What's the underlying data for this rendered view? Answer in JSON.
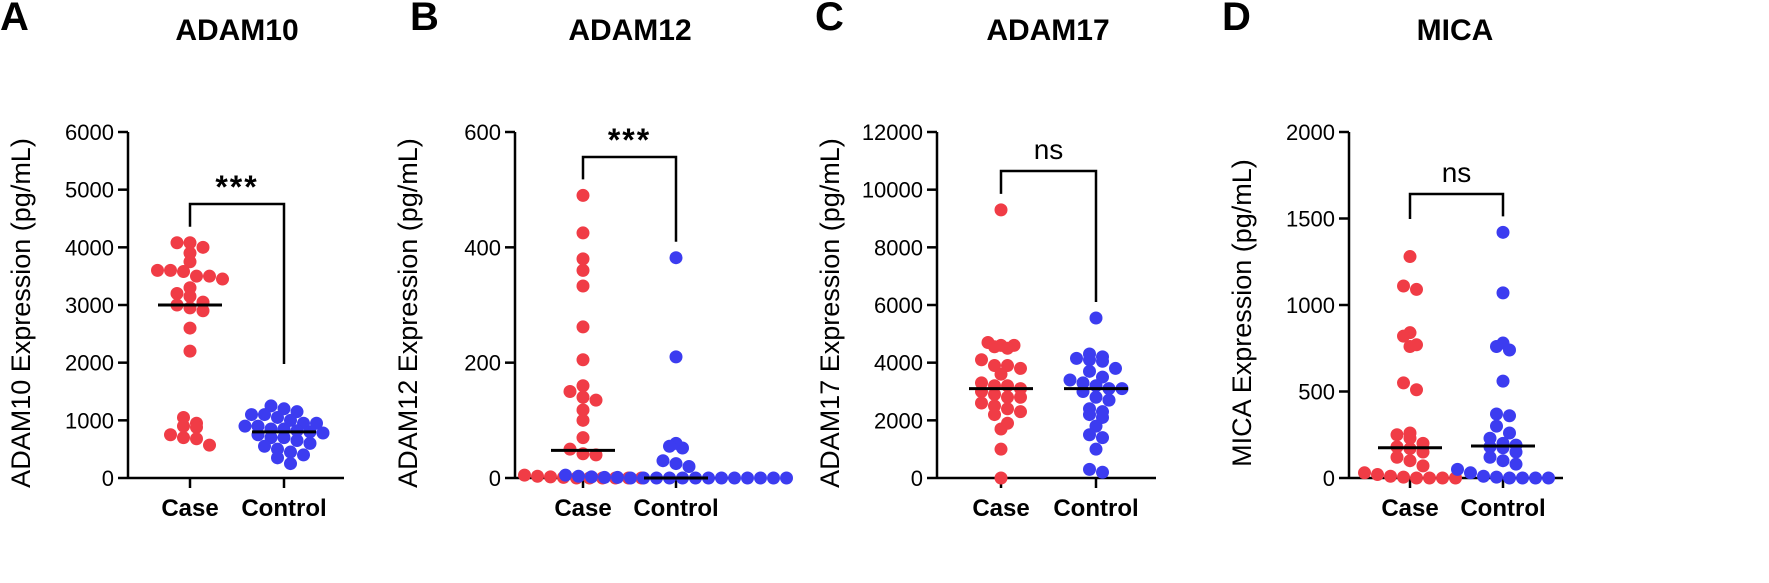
{
  "chart_data": [
    {
      "type": "scatter",
      "panel": "A",
      "title": "ADAM10",
      "ylabel": "ADAM10 Expression (pg/mL)",
      "ylim": [
        0,
        6000
      ],
      "yticks": [
        0,
        1000,
        2000,
        3000,
        4000,
        5000,
        6000
      ],
      "categories": [
        "Case",
        "Control"
      ],
      "significance": "***",
      "colors": [
        "#f03c46",
        "#3c3cf0"
      ],
      "series": [
        {
          "name": "Case",
          "median": 3000,
          "values": [
            4080,
            4080,
            4000,
            3900,
            3750,
            3600,
            3600,
            3580,
            3500,
            3500,
            3450,
            3300,
            3200,
            3150,
            3050,
            3000,
            2950,
            2900,
            2600,
            2200,
            1050,
            950,
            900,
            880,
            750,
            700,
            680,
            570
          ]
        },
        {
          "name": "Control",
          "median": 800,
          "values": [
            1250,
            1200,
            1150,
            1100,
            1100,
            1050,
            1000,
            950,
            950,
            900,
            900,
            850,
            850,
            820,
            800,
            780,
            750,
            700,
            700,
            650,
            600,
            550,
            500,
            450,
            400,
            350,
            250
          ]
        }
      ]
    },
    {
      "type": "scatter",
      "panel": "B",
      "title": "ADAM12",
      "ylabel": "ADAM12 Expression (pg/mL)",
      "ylim": [
        0,
        600
      ],
      "yticks": [
        0,
        200,
        400,
        600
      ],
      "categories": [
        "Case",
        "Control"
      ],
      "significance": "***",
      "colors": [
        "#f03c46",
        "#3c3cf0"
      ],
      "series": [
        {
          "name": "Case",
          "median": 48,
          "values": [
            490,
            425,
            380,
            360,
            333,
            262,
            205,
            160,
            150,
            140,
            135,
            118,
            100,
            70,
            50,
            42,
            40,
            5,
            3,
            2,
            1,
            0,
            0,
            0,
            0,
            0,
            0
          ]
        },
        {
          "name": "Control",
          "median": 0,
          "values": [
            382,
            210,
            60,
            55,
            52,
            30,
            25,
            20,
            5,
            3,
            2,
            1,
            1,
            0,
            0,
            0,
            0,
            0,
            0,
            0,
            0,
            0,
            0,
            0,
            0,
            0
          ]
        }
      ]
    },
    {
      "type": "scatter",
      "panel": "C",
      "title": "ADAM17",
      "ylabel": "ADAM17 Expression (pg/mL)",
      "ylim": [
        0,
        12000
      ],
      "yticks": [
        0,
        2000,
        4000,
        6000,
        8000,
        10000,
        12000
      ],
      "categories": [
        "Case",
        "Control"
      ],
      "significance": "ns",
      "colors": [
        "#f03c46",
        "#3c3cf0"
      ],
      "series": [
        {
          "name": "Case",
          "median": 3100,
          "values": [
            9300,
            4700,
            4600,
            4600,
            4550,
            4500,
            4100,
            3900,
            3900,
            3800,
            3600,
            3300,
            3200,
            3200,
            3100,
            3000,
            2900,
            2800,
            2800,
            2600,
            2500,
            2400,
            2300,
            2200,
            1900,
            1700,
            1000,
            0
          ]
        },
        {
          "name": "Control",
          "median": 3100,
          "values": [
            5550,
            4300,
            4200,
            4150,
            4100,
            4050,
            3800,
            3700,
            3500,
            3400,
            3300,
            3200,
            3100,
            3100,
            3000,
            2800,
            2700,
            2400,
            2300,
            2200,
            2100,
            1800,
            1500,
            1400,
            1000,
            300,
            200
          ]
        }
      ]
    },
    {
      "type": "scatter",
      "panel": "D",
      "title": "MICA",
      "ylabel": "MICA Expression (pg/mL)",
      "ylim": [
        0,
        2000
      ],
      "yticks": [
        0,
        500,
        1000,
        1500,
        2000
      ],
      "categories": [
        "Case",
        "Control"
      ],
      "significance": "ns",
      "colors": [
        "#f03c46",
        "#3c3cf0"
      ],
      "series": [
        {
          "name": "Case",
          "median": 175,
          "values": [
            1280,
            1110,
            1090,
            840,
            820,
            770,
            760,
            550,
            510,
            260,
            250,
            230,
            200,
            180,
            170,
            150,
            120,
            100,
            70,
            30,
            20,
            10,
            5,
            0,
            0,
            0,
            0
          ]
        },
        {
          "name": "Control",
          "median": 185,
          "values": [
            1420,
            1070,
            780,
            760,
            740,
            560,
            370,
            360,
            300,
            260,
            230,
            200,
            190,
            180,
            175,
            150,
            120,
            100,
            80,
            50,
            30,
            10,
            5,
            0,
            0,
            0,
            0
          ]
        }
      ]
    }
  ]
}
